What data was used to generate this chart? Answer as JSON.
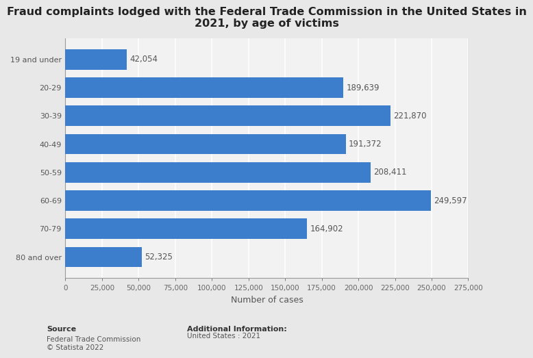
{
  "title": "Fraud complaints lodged with the Federal Trade Commission in the United States in\n2021, by age of victims",
  "categories": [
    "19 and under",
    "20-29",
    "30-39",
    "40-49",
    "50-59",
    "60-69",
    "70-79",
    "80 and over"
  ],
  "values": [
    42054,
    189639,
    221870,
    191372,
    208411,
    249597,
    164902,
    52325
  ],
  "bar_color": "#3d7ecc",
  "background_color": "#e8e8e8",
  "plot_background_color": "#f2f2f2",
  "xlabel": "Number of cases",
  "xlim": [
    0,
    275000
  ],
  "xticks": [
    0,
    25000,
    50000,
    75000,
    100000,
    125000,
    150000,
    175000,
    200000,
    225000,
    250000,
    275000
  ],
  "xtick_labels": [
    "0",
    "25,000",
    "50,000",
    "75,000",
    "100,000",
    "125,000",
    "150,000",
    "175,000",
    "200,000",
    "225,000",
    "250,000",
    "275,000"
  ],
  "title_fontsize": 11.5,
  "label_fontsize": 9,
  "tick_fontsize": 8,
  "value_fontsize": 8.5,
  "value_labels": [
    "42,054",
    "189,639",
    "221,870",
    "191,372",
    "208,411",
    "249,597",
    "164,902",
    "52,325"
  ],
  "source_bold": "Source",
  "source_text": "Federal Trade Commission\n© Statista 2022",
  "additional_bold": "Additional Information:",
  "additional_text": "United States : 2021"
}
